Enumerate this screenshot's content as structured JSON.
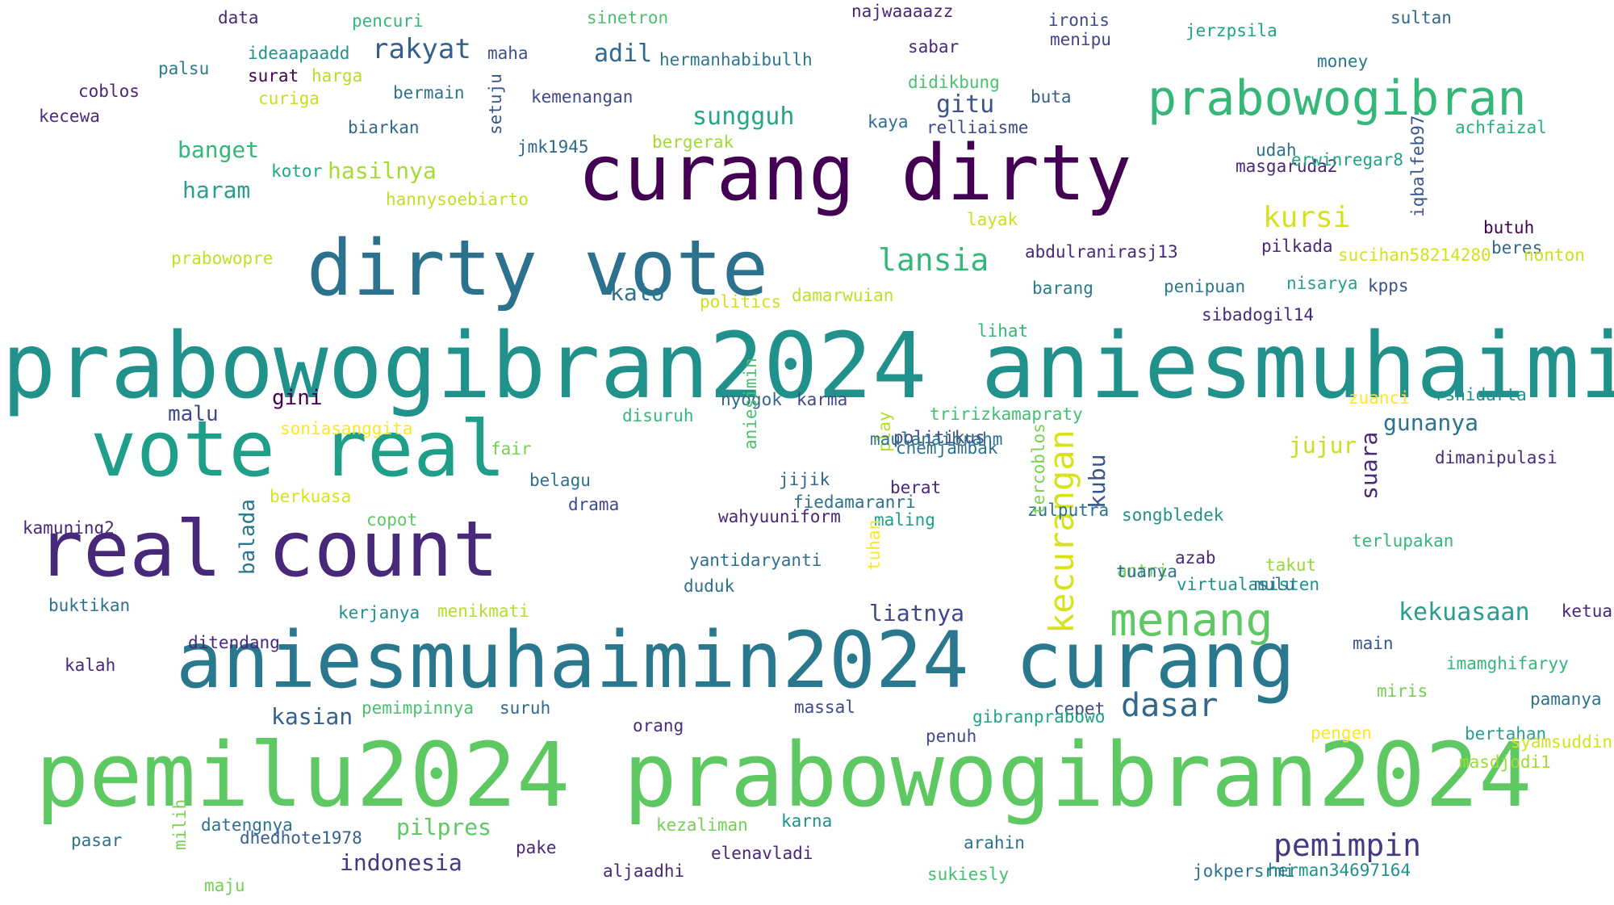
{
  "words": [
    {
      "text": "prabowogibran2024 aniesmuhaimin2024",
      "color": "#21918c",
      "size": 112
    },
    {
      "text": "pemilu2024 prabowogibran2024",
      "color": "#5ec962",
      "size": 110
    },
    {
      "text": "aniesmuhaimin2024 curang",
      "color": "#2a788e",
      "size": 96
    },
    {
      "text": "curang dirty",
      "color": "#440154",
      "size": 95
    },
    {
      "text": "real count",
      "color": "#482878",
      "size": 95
    },
    {
      "text": "vote real",
      "color": "#1f9e89",
      "size": 95
    },
    {
      "text": "dirty vote",
      "color": "#2c728e",
      "size": 95
    },
    {
      "text": "prabowogibran",
      "color": "#35b779",
      "size": 60
    },
    {
      "text": "menang",
      "color": "#5ec962",
      "size": 56
    },
    {
      "text": "kecurangan",
      "color": "#d8e219",
      "size": 42,
      "vertical": true
    },
    {
      "text": "dasar",
      "color": "#31688e",
      "size": 40
    },
    {
      "text": "lansia",
      "color": "#35b779",
      "size": 38
    },
    {
      "text": "pemimpin",
      "color": "#443a83",
      "size": 38
    },
    {
      "text": "kursi",
      "color": "#d8e219",
      "size": 36
    },
    {
      "text": "rakyat",
      "color": "#355f8d",
      "size": 34
    },
    {
      "text": "kekuasaan",
      "color": "#2a9d8f",
      "size": 30
    },
    {
      "text": "gitu",
      "color": "#3b528b",
      "size": 30
    },
    {
      "text": "sungguh",
      "color": "#22a884",
      "size": 30
    },
    {
      "text": "adil",
      "color": "#31688e",
      "size": 30
    },
    {
      "text": "suara",
      "color": "#482878",
      "size": 28,
      "vertical": true
    },
    {
      "text": "gunanya",
      "color": "#2c728e",
      "size": 28
    },
    {
      "text": "jujur",
      "color": "#c8e020",
      "size": 28
    },
    {
      "text": "liatnya",
      "color": "#404688",
      "size": 28
    },
    {
      "text": "hasilnya",
      "color": "#a5db36",
      "size": 28
    },
    {
      "text": "indonesia",
      "color": "#443a83",
      "size": 28
    },
    {
      "text": "banget",
      "color": "#35b779",
      "size": 28
    },
    {
      "text": "haram",
      "color": "#2a9d8f",
      "size": 28
    },
    {
      "text": "kasian",
      "color": "#355f8d",
      "size": 28
    },
    {
      "text": "kalo",
      "color": "#2c728e",
      "size": 28
    },
    {
      "text": "pilpres",
      "color": "#5ec962",
      "size": 28
    },
    {
      "text": "kubu",
      "color": "#39568c",
      "size": 28,
      "vertical": true
    },
    {
      "text": "gini",
      "color": "#440154",
      "size": 26
    },
    {
      "text": "malu",
      "color": "#3e4a89",
      "size": 26
    },
    {
      "text": "balada",
      "color": "#2a788e",
      "size": 26,
      "vertical": true
    },
    {
      "text": "najwaaaazz",
      "color": "#482878",
      "size": 21
    },
    {
      "text": "data",
      "color": "#482878",
      "size": 21
    },
    {
      "text": "pencuri",
      "color": "#35b779",
      "size": 21
    },
    {
      "text": "sinetron",
      "color": "#4ac16d",
      "size": 21
    },
    {
      "text": "ironis",
      "color": "#3e4a89",
      "size": 21
    },
    {
      "text": "menipu",
      "color": "#404688",
      "size": 21
    },
    {
      "text": "jerzpsila",
      "color": "#20a486",
      "size": 21
    },
    {
      "text": "sultan",
      "color": "#31688e",
      "size": 21
    },
    {
      "text": "ideaapaadd",
      "color": "#21918c",
      "size": 21
    },
    {
      "text": "maha",
      "color": "#3b528b",
      "size": 21
    },
    {
      "text": "sabar",
      "color": "#482878",
      "size": 21
    },
    {
      "text": "money",
      "color": "#2a788e",
      "size": 21
    },
    {
      "text": "hermanhabibullh",
      "color": "#2a788e",
      "size": 21
    },
    {
      "text": "palsu",
      "color": "#287c8e",
      "size": 21
    },
    {
      "text": "surat",
      "color": "#440154",
      "size": 21
    },
    {
      "text": "harga",
      "color": "#b5de2b",
      "size": 21
    },
    {
      "text": "setuju",
      "color": "#39568c",
      "size": 21,
      "vertical": true
    },
    {
      "text": "coblos",
      "color": "#482878",
      "size": 21
    },
    {
      "text": "bermain",
      "color": "#2c728e",
      "size": 21
    },
    {
      "text": "kemenangan",
      "color": "#3e4a89",
      "size": 21
    },
    {
      "text": "didikbung",
      "color": "#4ac16d",
      "size": 21
    },
    {
      "text": "buta",
      "color": "#355f8d",
      "size": 21
    },
    {
      "text": "curiga",
      "color": "#c8e020",
      "size": 21
    },
    {
      "text": "iqbalfeb97",
      "color": "#39568c",
      "size": 21,
      "vertical": true
    },
    {
      "text": "kecewa",
      "color": "#472d7b",
      "size": 21
    },
    {
      "text": "biarkan",
      "color": "#31688e",
      "size": 21
    },
    {
      "text": "kaya",
      "color": "#2c728e",
      "size": 21
    },
    {
      "text": "relliaisme",
      "color": "#3e4a89",
      "size": 21
    },
    {
      "text": "achfaizal",
      "color": "#28ae80",
      "size": 21
    },
    {
      "text": "jmk1945",
      "color": "#31688e",
      "size": 21
    },
    {
      "text": "bergerak",
      "color": "#a0da39",
      "size": 21
    },
    {
      "text": "udah",
      "color": "#2c728e",
      "size": 21
    },
    {
      "text": "masgaruda2",
      "color": "#482878",
      "size": 21
    },
    {
      "text": "erwinregar8",
      "color": "#20a486",
      "size": 21
    },
    {
      "text": "kotor",
      "color": "#22a884",
      "size": 21
    },
    {
      "text": "hannysoebiarto",
      "color": "#c2df23",
      "size": 21
    },
    {
      "text": "layak",
      "color": "#cae11f",
      "size": 21
    },
    {
      "text": "butuh",
      "color": "#440154",
      "size": 21
    },
    {
      "text": "beres",
      "color": "#31688e",
      "size": 21
    },
    {
      "text": "abdulranirasj13",
      "color": "#482878",
      "size": 21
    },
    {
      "text": "pilkada",
      "color": "#482878",
      "size": 21
    },
    {
      "text": "sucihan58214280",
      "color": "#d2e21b",
      "size": 21
    },
    {
      "text": "nonton",
      "color": "#cae11f",
      "size": 21
    },
    {
      "text": "prabowopre",
      "color": "#c2df23",
      "size": 21
    },
    {
      "text": "damarwuian",
      "color": "#bddf26",
      "size": 21
    },
    {
      "text": "politics",
      "color": "#d0e11c",
      "size": 21
    },
    {
      "text": "barang",
      "color": "#287c8e",
      "size": 21
    },
    {
      "text": "penipuan",
      "color": "#2a788e",
      "size": 21
    },
    {
      "text": "nisarya",
      "color": "#2a9d8f",
      "size": 21
    },
    {
      "text": "kpps",
      "color": "#3b528b",
      "size": 21
    },
    {
      "text": "sibadogil14",
      "color": "#482878",
      "size": 21
    },
    {
      "text": "lihat",
      "color": "#35b779",
      "size": 21
    },
    {
      "text": "nyogok",
      "color": "#31688e",
      "size": 21
    },
    {
      "text": "karma",
      "color": "#3e4a89",
      "size": 21
    },
    {
      "text": "disuruh",
      "color": "#35b779",
      "size": 21
    },
    {
      "text": "zuanci",
      "color": "#fde725",
      "size": 21
    },
    {
      "text": "rshidarta",
      "color": "#21918c",
      "size": 21
    },
    {
      "text": "soniasanggita",
      "color": "#fde725",
      "size": 21
    },
    {
      "text": "tririzkamapraty",
      "color": "#43bf71",
      "size": 21
    },
    {
      "text": "play",
      "color": "#b5de2b",
      "size": 21,
      "vertical": true
    },
    {
      "text": "politikus",
      "color": "#3e4a89",
      "size": 21
    },
    {
      "text": "chemjambak",
      "color": "#2c728e",
      "size": 21
    },
    {
      "text": "maulanaibrahm",
      "color": "#2c728e",
      "size": 21
    },
    {
      "text": "fair",
      "color": "#75d054",
      "size": 21
    },
    {
      "text": "aniesimin",
      "color": "#4ac16d",
      "size": 21,
      "vertical": true
    },
    {
      "text": "zulputra",
      "color": "#2c728e",
      "size": 21
    },
    {
      "text": "dimanipulasi",
      "color": "#472d7b",
      "size": 21
    },
    {
      "text": "belagu",
      "color": "#2c728e",
      "size": 21
    },
    {
      "text": "jijik",
      "color": "#31688e",
      "size": 21
    },
    {
      "text": "berat",
      "color": "#482878",
      "size": 21
    },
    {
      "text": "berkuasa",
      "color": "#d8e219",
      "size": 21
    },
    {
      "text": "drama",
      "color": "#3e4a89",
      "size": 21
    },
    {
      "text": "fiedamaranri",
      "color": "#2c728e",
      "size": 21
    },
    {
      "text": "kamuning2",
      "color": "#482878",
      "size": 21
    },
    {
      "text": "copot",
      "color": "#5ec962",
      "size": 21
    },
    {
      "text": "wahyuuniform",
      "color": "#482878",
      "size": 21
    },
    {
      "text": "maling",
      "color": "#1f9e89",
      "size": 21
    },
    {
      "text": "tercoblos",
      "color": "#7ad151",
      "size": 21,
      "vertical": true
    },
    {
      "text": "songbledek",
      "color": "#21918c",
      "size": 21
    },
    {
      "text": "terlupakan",
      "color": "#35b779",
      "size": 21
    },
    {
      "text": "azab",
      "color": "#482878",
      "size": 21
    },
    {
      "text": "yantidaryanti",
      "color": "#2c728e",
      "size": 21
    },
    {
      "text": "antri",
      "color": "#75d054",
      "size": 21
    },
    {
      "text": "tuanya",
      "color": "#2c728e",
      "size": 21
    },
    {
      "text": "takut",
      "color": "#95d840",
      "size": 21
    },
    {
      "text": "tuhan",
      "color": "#fde725",
      "size": 21,
      "vertical": true
    },
    {
      "text": "ketua",
      "color": "#482878",
      "size": 21
    },
    {
      "text": "duduk",
      "color": "#2c728e",
      "size": 21
    },
    {
      "text": "virtualasisten",
      "color": "#21918c",
      "size": 21
    },
    {
      "text": "mulu",
      "color": "#2c728e",
      "size": 21
    },
    {
      "text": "buktikan",
      "color": "#2c728e",
      "size": 21
    },
    {
      "text": "kerjanya",
      "color": "#21918c",
      "size": 21
    },
    {
      "text": "menikmati",
      "color": "#b5de2b",
      "size": 21
    },
    {
      "text": "ditendang",
      "color": "#482878",
      "size": 21
    },
    {
      "text": "main",
      "color": "#39568c",
      "size": 21
    },
    {
      "text": "kalah",
      "color": "#482878",
      "size": 21
    },
    {
      "text": "imamghifaryy",
      "color": "#35b779",
      "size": 21
    },
    {
      "text": "miris",
      "color": "#75d054",
      "size": 21
    },
    {
      "text": "pemimpinnya",
      "color": "#4ac16d",
      "size": 21
    },
    {
      "text": "suruh",
      "color": "#31688e",
      "size": 21
    },
    {
      "text": "massal",
      "color": "#3e4a89",
      "size": 21
    },
    {
      "text": "cepet",
      "color": "#3e4a89",
      "size": 21
    },
    {
      "text": "pamanya",
      "color": "#2c728e",
      "size": 21
    },
    {
      "text": "gibranprabowo",
      "color": "#20a486",
      "size": 21
    },
    {
      "text": "orang",
      "color": "#472d7b",
      "size": 21
    },
    {
      "text": "penuh",
      "color": "#3e4a89",
      "size": 21
    },
    {
      "text": "pengen",
      "color": "#fde725",
      "size": 21
    },
    {
      "text": "bertahan",
      "color": "#2a9d8f",
      "size": 21
    },
    {
      "text": "syamsuddin",
      "color": "#d2e21b",
      "size": 21
    },
    {
      "text": "masdjodi1",
      "color": "#a0da39",
      "size": 21
    },
    {
      "text": "datengnya",
      "color": "#2c728e",
      "size": 21
    },
    {
      "text": "kezaliman",
      "color": "#75d054",
      "size": 21
    },
    {
      "text": "karna",
      "color": "#21918c",
      "size": 21
    },
    {
      "text": "dhedhote1978",
      "color": "#355f8d",
      "size": 21
    },
    {
      "text": "pasar",
      "color": "#2c728e",
      "size": 21
    },
    {
      "text": "arahin",
      "color": "#2c728e",
      "size": 21
    },
    {
      "text": "pake",
      "color": "#482878",
      "size": 21
    },
    {
      "text": "milih",
      "color": "#7ad151",
      "size": 21,
      "vertical": true
    },
    {
      "text": "elenavladi",
      "color": "#482878",
      "size": 21
    },
    {
      "text": "herman34697164",
      "color": "#21918c",
      "size": 21
    },
    {
      "text": "jokpersrmi",
      "color": "#2c728e",
      "size": 21
    },
    {
      "text": "aljaadhi",
      "color": "#482878",
      "size": 21
    },
    {
      "text": "sukiesly",
      "color": "#43bf71",
      "size": 21
    },
    {
      "text": "maju",
      "color": "#75d054",
      "size": 21
    }
  ]
}
